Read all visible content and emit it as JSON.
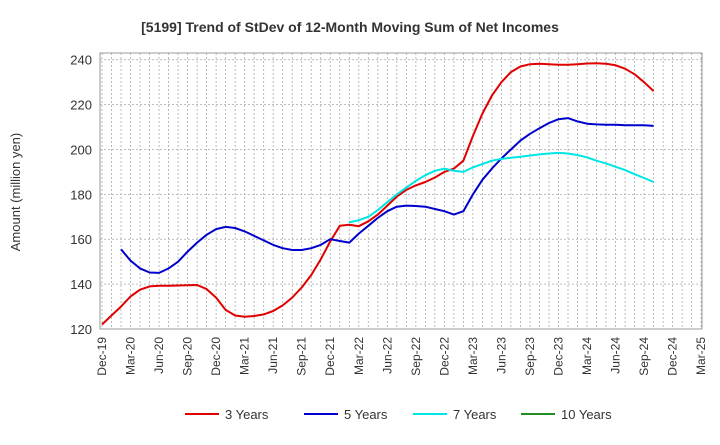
{
  "chart_data": {
    "type": "line",
    "title": "[5199]  Trend of StDev of 12-Month Moving Sum of Net Incomes",
    "xlabel": "",
    "ylabel": "Amount (million yen)",
    "ylim": [
      120,
      243
    ],
    "yticks": [
      120,
      140,
      160,
      180,
      200,
      220,
      240
    ],
    "x_ticks": [
      "Dec-19",
      "Mar-20",
      "Jun-20",
      "Sep-20",
      "Dec-20",
      "Mar-21",
      "Jun-21",
      "Sep-21",
      "Dec-21",
      "Mar-22",
      "Jun-22",
      "Sep-22",
      "Dec-22",
      "Mar-23",
      "Jun-23",
      "Sep-23",
      "Dec-23",
      "Mar-24",
      "Jun-24",
      "Sep-24",
      "Dec-24",
      "Mar-25"
    ],
    "grid": true,
    "legend_position": "bottom",
    "series": [
      {
        "name": "3 Years",
        "color": "#e00000",
        "values": [
          122,
          126,
          130,
          134.5,
          137.5,
          139,
          139.3,
          139.3,
          139.4,
          139.5,
          139.6,
          137.8,
          134,
          128.5,
          126,
          125.5,
          125.8,
          126.5,
          128,
          130.5,
          134,
          138.5,
          144,
          151,
          159,
          166,
          166.5,
          165.8,
          168,
          171,
          175,
          179,
          182,
          184,
          185.5,
          187.5,
          190,
          191.5,
          195,
          206,
          216,
          224,
          230,
          234.5,
          237,
          238,
          238.2,
          238,
          237.8,
          237.8,
          238,
          238.3,
          238.4,
          238.2,
          237.5,
          236,
          233.5,
          230,
          226
        ]
      },
      {
        "name": "5 Years",
        "color": "#0000cc",
        "values": [
          null,
          null,
          155.5,
          150.5,
          147,
          145.2,
          145,
          147,
          150,
          154.5,
          158.5,
          162,
          164.5,
          165.5,
          165,
          163.5,
          161.5,
          159.5,
          157.5,
          156,
          155.2,
          155.2,
          156,
          157.5,
          160,
          159.2,
          158.5,
          162.5,
          166,
          169.5,
          172.5,
          174.5,
          175,
          174.8,
          174.5,
          173.5,
          172.5,
          171,
          172.5,
          180,
          186.5,
          191.5,
          196,
          200,
          204,
          207,
          209.5,
          211.8,
          213.5,
          214,
          212.5,
          211.5,
          211.2,
          211,
          211,
          210.8,
          210.8,
          210.8,
          210.5
        ]
      },
      {
        "name": "7 Years",
        "color": "#00e5e5",
        "values": [
          null,
          null,
          null,
          null,
          null,
          null,
          null,
          null,
          null,
          null,
          null,
          null,
          null,
          null,
          null,
          null,
          null,
          null,
          null,
          null,
          null,
          null,
          null,
          null,
          null,
          null,
          167.5,
          168.5,
          170,
          173,
          176.5,
          180,
          183,
          186,
          188.5,
          190.5,
          191.5,
          190.5,
          190,
          192,
          193.5,
          195,
          195.8,
          196.3,
          196.8,
          197.3,
          197.8,
          198.2,
          198.5,
          198.2,
          197.5,
          196.5,
          195,
          193.8,
          192.3,
          190.8,
          189,
          187.3,
          185.5
        ]
      },
      {
        "name": "10 Years",
        "color": "#228b22",
        "values": []
      }
    ]
  }
}
